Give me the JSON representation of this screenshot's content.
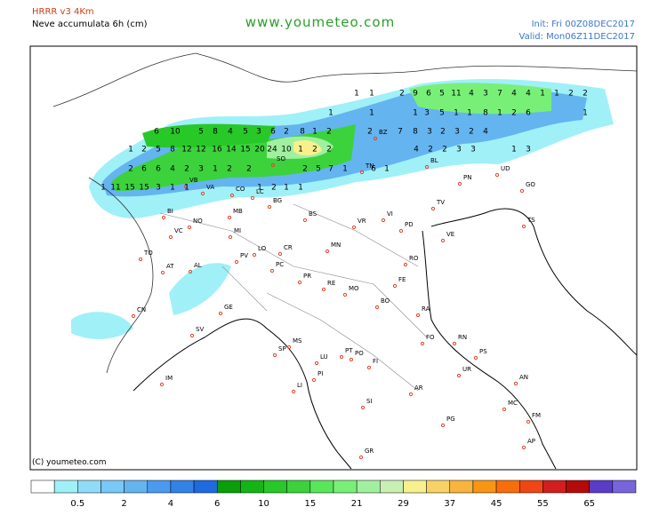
{
  "header": {
    "model": "HRRR v3 4Km",
    "product": "Neve accumulata 6h (cm)",
    "site": "www.youmeteo.com",
    "init": "Init: Fri  00Z08DEC2017",
    "valid": "Valid: Mon06Z11DEC2017"
  },
  "copyright": "(C) youmeteo.com",
  "cities": [
    "BI",
    "NO",
    "VC",
    "TO",
    "AT",
    "AL",
    "CN",
    "GE",
    "SV",
    "IM",
    "VA",
    "CO",
    "LC",
    "VB",
    "SO",
    "BG",
    "MB",
    "MI",
    "LO",
    "CR",
    "PV",
    "PC",
    "BS",
    "VR",
    "VI",
    "TV",
    "PD",
    "VE",
    "BL",
    "TN",
    "BZ",
    "UD",
    "PN",
    "GO",
    "TS",
    "RO",
    "MN",
    "FE",
    "PR",
    "RE",
    "MO",
    "BO",
    "RA",
    "FO",
    "RN",
    "PS",
    "MS",
    "SP",
    "LU",
    "PT",
    "PO",
    "FI",
    "PI",
    "LI",
    "AR",
    "SI",
    "AN",
    "MC",
    "FM",
    "AP",
    "PG",
    "GR",
    "UR"
  ],
  "snow_labels": [
    1,
    1,
    2,
    9,
    6,
    5,
    11,
    4,
    3,
    7,
    4,
    4,
    1,
    1,
    2,
    2,
    1,
    1,
    1,
    3,
    5,
    1,
    1,
    8,
    1,
    2,
    6,
    1,
    6,
    10,
    5,
    8,
    4,
    5,
    3,
    6,
    2,
    8,
    1,
    2,
    2,
    7,
    8,
    3,
    2,
    3,
    2,
    4,
    1,
    2,
    5,
    8,
    12,
    12,
    16,
    14,
    15,
    20,
    24,
    10,
    1,
    2,
    2,
    4,
    2,
    2,
    3,
    3,
    1,
    3,
    2,
    6,
    6,
    4,
    2,
    3,
    1,
    2,
    2,
    2,
    5,
    7,
    1,
    6,
    1,
    1,
    11,
    15,
    15,
    3,
    1,
    1,
    1,
    2,
    1,
    1
  ],
  "scale": {
    "colors": [
      "#ffffff",
      "#a0f0f8",
      "#90dcf8",
      "#78c8f8",
      "#64b4f0",
      "#4a9af0",
      "#3282e8",
      "#1e6ae0",
      "#0a9e0a",
      "#14b414",
      "#28c828",
      "#3cd23c",
      "#5ae65a",
      "#78f078",
      "#a0f0a0",
      "#c8f0b4",
      "#f8f08c",
      "#f8d264",
      "#f8b43c",
      "#f89614",
      "#f86e0a",
      "#f04614",
      "#d21e1e",
      "#b40a0a",
      "#5a3cc8",
      "#7864dc"
    ],
    "labels": [
      "0.5",
      "2",
      "4",
      "6",
      "10",
      "15",
      "21",
      "29",
      "37",
      "45",
      "55",
      "65"
    ]
  }
}
